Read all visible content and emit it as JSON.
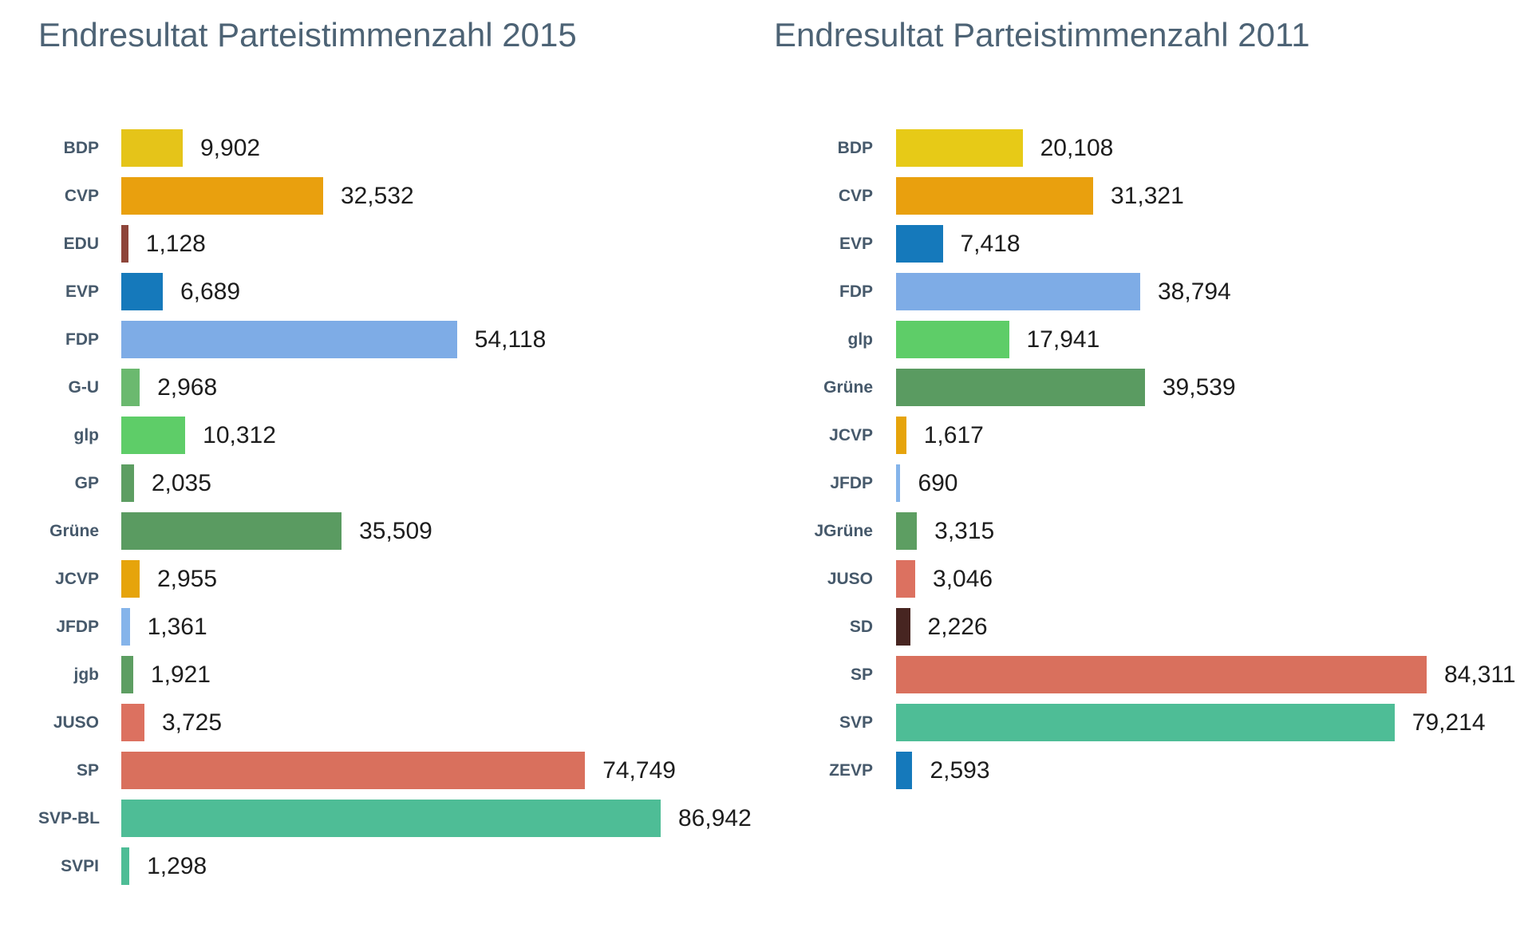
{
  "colors": {
    "background": "#ffffff",
    "title_text": "#4d6375",
    "category_label_text": "#46596b",
    "value_label_text": "#1d1d1d"
  },
  "chart_data": [
    {
      "type": "bar",
      "orientation": "horizontal",
      "title": "Endresultat Parteistimmenzahl 2015",
      "categories": [
        "BDP",
        "CVP",
        "EDU",
        "EVP",
        "FDP",
        "G-U",
        "glp",
        "GP",
        "Grüne",
        "JCVP",
        "JFDP",
        "jgb",
        "JUSO",
        "SP",
        "SVP-BL",
        "SVPI"
      ],
      "values": [
        9902,
        32532,
        1128,
        6689,
        54118,
        2968,
        10312,
        2035,
        35509,
        2955,
        1361,
        1921,
        3725,
        74749,
        86942,
        1298
      ],
      "value_labels": [
        "9,902",
        "32,532",
        "1,128",
        "6,689",
        "54,118",
        "2,968",
        "10,312",
        "2,035",
        "35,509",
        "2,955",
        "1,361",
        "1,921",
        "3,725",
        "74,749",
        "86,942",
        "1,298"
      ],
      "colors": [
        "#e5c419",
        "#e9a00e",
        "#8e453a",
        "#1579bb",
        "#7eace6",
        "#6bb96f",
        "#5ecd68",
        "#5d9e62",
        "#5a9b61",
        "#e6a40b",
        "#85b4ea",
        "#5d9e62",
        "#dc7160",
        "#d9705d",
        "#4ebd96",
        "#4ebd96"
      ],
      "xlim": [
        0,
        86942
      ],
      "grid": false,
      "legend": false,
      "value_labels_position": "right-of-bar"
    },
    {
      "type": "bar",
      "orientation": "horizontal",
      "title": "Endresultat Parteistimmenzahl 2011",
      "categories": [
        "BDP",
        "CVP",
        "EVP",
        "FDP",
        "glp",
        "Grüne",
        "JCVP",
        "JFDP",
        "JGrüne",
        "JUSO",
        "SD",
        "SP",
        "SVP",
        "ZEVP"
      ],
      "values": [
        20108,
        31321,
        7418,
        38794,
        17941,
        39539,
        1617,
        690,
        3315,
        3046,
        2226,
        84311,
        79214,
        2593
      ],
      "value_labels": [
        "20,108",
        "31,321",
        "7,418",
        "38,794",
        "17,941",
        "39,539",
        "1,617",
        "690",
        "3,315",
        "3,046",
        "2,226",
        "84,311",
        "79,214",
        "2,593"
      ],
      "colors": [
        "#e7ca17",
        "#e9a00e",
        "#1579bb",
        "#7eace6",
        "#5ecd68",
        "#5a9b61",
        "#e6a40b",
        "#85b4ea",
        "#5d9e62",
        "#dc7160",
        "#472521",
        "#d9705d",
        "#4ebd96",
        "#1579bb"
      ],
      "xlim": [
        0,
        84311
      ],
      "grid": false,
      "legend": false,
      "value_labels_position": "right-of-bar"
    }
  ]
}
